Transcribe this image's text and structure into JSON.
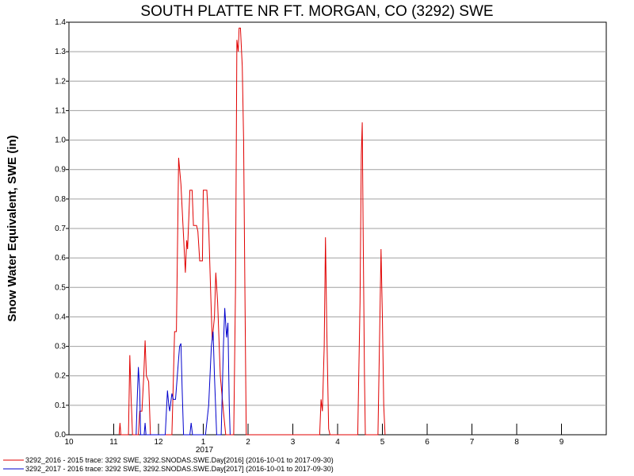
{
  "chart_data": {
    "type": "line",
    "title": "SOUTH PLATTE NR FT. MORGAN, CO (3292) SWE",
    "ylabel": "Snow Water Equivalent, SWE (in)",
    "xlabel": "",
    "ylim": [
      0,
      1.4
    ],
    "yticks": [
      "0.0",
      "0.1",
      "0.2",
      "0.3",
      "0.4",
      "0.5",
      "0.6",
      "0.7",
      "0.8",
      "0.9",
      "1.0",
      "1.1",
      "1.2",
      "1.3",
      "1.4"
    ],
    "xticks": [
      {
        "label": "10",
        "month": 0
      },
      {
        "label": "11",
        "month": 1
      },
      {
        "label": "12",
        "month": 2
      },
      {
        "label": "1",
        "month": 3
      },
      {
        "label": "2",
        "month": 4
      },
      {
        "label": "3",
        "month": 5
      },
      {
        "label": "4",
        "month": 6
      },
      {
        "label": "5",
        "month": 7
      },
      {
        "label": "6",
        "month": 8
      },
      {
        "label": "7",
        "month": 9
      },
      {
        "label": "8",
        "month": 10
      },
      {
        "label": "9",
        "month": 11
      }
    ],
    "year_label": "2017",
    "grid": true,
    "legend_position": "bottom-left",
    "series": [
      {
        "name": "3292_2016 - 2015 trace: 3292 SWE, 3292.SNODAS.SWE.Day[2016] (2016-10-01 to 2017-09-30)",
        "color": "#e00000",
        "points": [
          [
            1.12,
            0
          ],
          [
            1.14,
            0.04
          ],
          [
            1.16,
            0
          ],
          [
            1.33,
            0
          ],
          [
            1.36,
            0.27
          ],
          [
            1.39,
            0.12
          ],
          [
            1.42,
            0
          ],
          [
            1.55,
            0
          ],
          [
            1.58,
            0.08
          ],
          [
            1.63,
            0.08
          ],
          [
            1.67,
            0.2
          ],
          [
            1.7,
            0.32
          ],
          [
            1.73,
            0.2
          ],
          [
            1.78,
            0.18
          ],
          [
            1.82,
            0
          ],
          [
            2.3,
            0
          ],
          [
            2.32,
            0.12
          ],
          [
            2.36,
            0.35
          ],
          [
            2.4,
            0.35
          ],
          [
            2.45,
            0.94
          ],
          [
            2.5,
            0.85
          ],
          [
            2.55,
            0.7
          ],
          [
            2.6,
            0.55
          ],
          [
            2.63,
            0.66
          ],
          [
            2.65,
            0.63
          ],
          [
            2.7,
            0.83
          ],
          [
            2.75,
            0.83
          ],
          [
            2.78,
            0.71
          ],
          [
            2.85,
            0.71
          ],
          [
            2.88,
            0.69
          ],
          [
            2.92,
            0.59
          ],
          [
            2.98,
            0.59
          ],
          [
            3.0,
            0.83
          ],
          [
            3.08,
            0.83
          ],
          [
            3.12,
            0.71
          ],
          [
            3.17,
            0.46
          ],
          [
            3.2,
            0.32
          ],
          [
            3.25,
            0.4
          ],
          [
            3.28,
            0.55
          ],
          [
            3.32,
            0.45
          ],
          [
            3.38,
            0.2
          ],
          [
            3.45,
            0.08
          ],
          [
            3.5,
            0
          ],
          [
            3.68,
            0
          ],
          [
            3.72,
            0.5
          ],
          [
            3.75,
            1.34
          ],
          [
            3.78,
            1.3
          ],
          [
            3.8,
            1.38
          ],
          [
            3.83,
            1.38
          ],
          [
            3.87,
            1.25
          ],
          [
            3.9,
            1.0
          ],
          [
            3.93,
            0.5
          ],
          [
            3.96,
            0
          ],
          [
            5.6,
            0
          ],
          [
            5.63,
            0.12
          ],
          [
            5.66,
            0.08
          ],
          [
            5.7,
            0.3
          ],
          [
            5.73,
            0.67
          ],
          [
            5.76,
            0.35
          ],
          [
            5.8,
            0.02
          ],
          [
            5.83,
            0
          ],
          [
            6.45,
            0
          ],
          [
            6.5,
            0.45
          ],
          [
            6.53,
            0.95
          ],
          [
            6.55,
            1.06
          ],
          [
            6.57,
            0.7
          ],
          [
            6.6,
            0.2
          ],
          [
            6.62,
            0
          ],
          [
            6.9,
            0
          ],
          [
            6.94,
            0.35
          ],
          [
            6.97,
            0.63
          ],
          [
            7.0,
            0.4
          ],
          [
            7.03,
            0.1
          ],
          [
            7.06,
            0
          ]
        ]
      },
      {
        "name": "3292_2017 - 2016 trace: 3292 SWE, 3292.SNODAS.SWE.Day[2017] (2016-10-01 to 2017-09-30)",
        "color": "#0000cc",
        "points": [
          [
            1.5,
            0
          ],
          [
            1.52,
            0.1
          ],
          [
            1.55,
            0.23
          ],
          [
            1.58,
            0.15
          ],
          [
            1.6,
            0
          ],
          [
            1.68,
            0
          ],
          [
            1.7,
            0.04
          ],
          [
            1.72,
            0
          ],
          [
            2.15,
            0
          ],
          [
            2.2,
            0.15
          ],
          [
            2.23,
            0.1
          ],
          [
            2.25,
            0.08
          ],
          [
            2.3,
            0.14
          ],
          [
            2.33,
            0.12
          ],
          [
            2.38,
            0.12
          ],
          [
            2.43,
            0.22
          ],
          [
            2.47,
            0.3
          ],
          [
            2.5,
            0.31
          ],
          [
            2.53,
            0.15
          ],
          [
            2.56,
            0
          ],
          [
            2.7,
            0
          ],
          [
            2.73,
            0.04
          ],
          [
            2.76,
            0
          ],
          [
            3.05,
            0
          ],
          [
            3.12,
            0.1
          ],
          [
            3.18,
            0.3
          ],
          [
            3.22,
            0.35
          ],
          [
            3.25,
            0.2
          ],
          [
            3.3,
            0
          ],
          [
            3.4,
            0
          ],
          [
            3.45,
            0.3
          ],
          [
            3.48,
            0.43
          ],
          [
            3.52,
            0.33
          ],
          [
            3.55,
            0.38
          ],
          [
            3.58,
            0.1
          ],
          [
            3.6,
            0
          ]
        ]
      }
    ]
  }
}
